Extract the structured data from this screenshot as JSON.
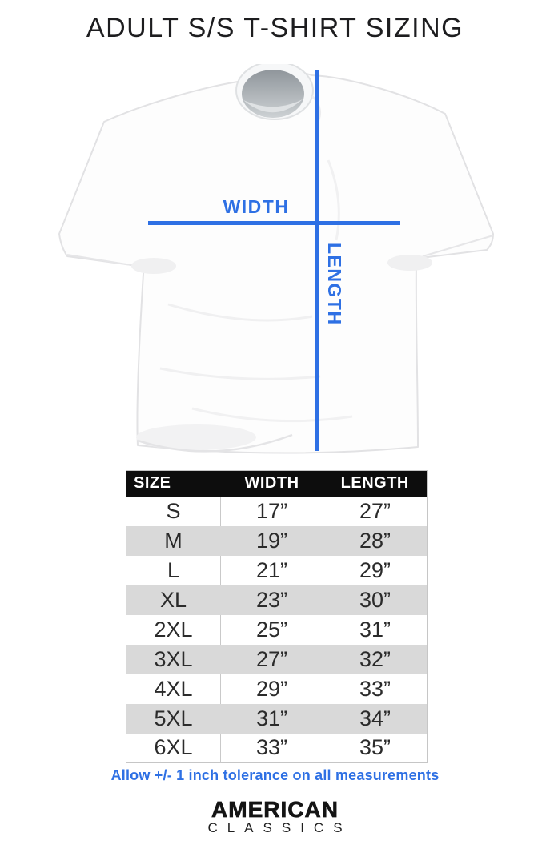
{
  "title": "ADULT S/S T-SHIRT SIZING",
  "diagram": {
    "width_label": "WIDTH",
    "length_label": "LENGTH"
  },
  "size_table": {
    "columns": [
      "SIZE",
      "WIDTH",
      "LENGTH"
    ],
    "rows": [
      {
        "size": "S",
        "width": "17”",
        "length": "27”"
      },
      {
        "size": "M",
        "width": "19”",
        "length": "28”"
      },
      {
        "size": "L",
        "width": "21”",
        "length": "29”"
      },
      {
        "size": "XL",
        "width": "23”",
        "length": "30”"
      },
      {
        "size": "2XL",
        "width": "25”",
        "length": "31”"
      },
      {
        "size": "3XL",
        "width": "27”",
        "length": "32”"
      },
      {
        "size": "4XL",
        "width": "29”",
        "length": "33”"
      },
      {
        "size": "5XL",
        "width": "31”",
        "length": "34”"
      },
      {
        "size": "6XL",
        "width": "33”",
        "length": "35”"
      }
    ]
  },
  "tolerance_note": "Allow +/- 1 inch tolerance on all measurements",
  "brand": {
    "primary": "AMERICAN",
    "secondary": "CLASSICS"
  },
  "colors": {
    "accent_blue": "#2e70e4",
    "table_header_bg": "#0d0d0d",
    "row_alt": "#d9d9d9"
  }
}
